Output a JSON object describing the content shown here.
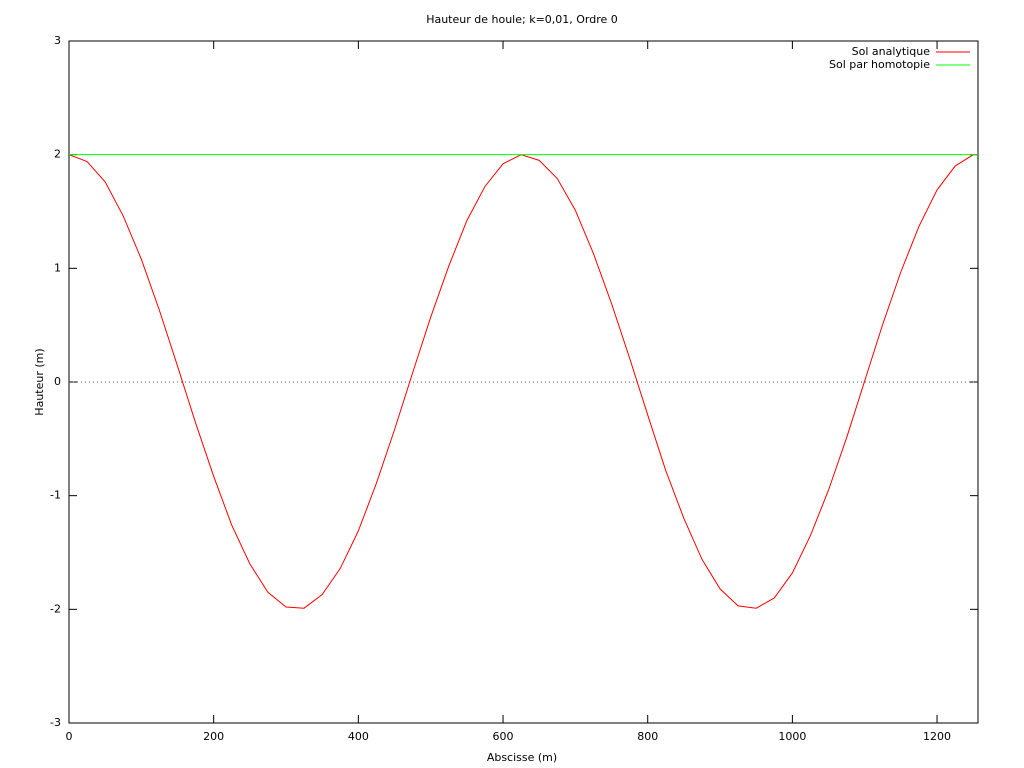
{
  "chart_data": {
    "type": "line",
    "title": "Hauteur de houle; k=0,01, Ordre 0",
    "x_label": "Abscisse (m)",
    "y_label": "Hauteur (m)",
    "xlim": [
      0,
      1256.6
    ],
    "ylim": [
      -3,
      3
    ],
    "xticks": [
      0,
      200,
      400,
      600,
      800,
      1000,
      1200
    ],
    "yticks": [
      -3,
      -2,
      -1,
      0,
      1,
      2,
      3
    ],
    "zeroaxis": true,
    "legend": "top-right",
    "series": [
      {
        "name": "Sol analytique",
        "color": "#ff0000",
        "x": [
          0,
          25,
          50,
          75,
          100,
          125,
          150,
          175,
          200,
          225,
          250,
          275,
          300,
          325,
          350,
          375,
          400,
          425,
          450,
          475,
          500,
          525,
          550,
          575,
          600,
          625,
          650,
          675,
          700,
          725,
          750,
          775,
          800,
          825,
          850,
          875,
          900,
          925,
          950,
          975,
          1000,
          1025,
          1050,
          1075,
          1100,
          1125,
          1150,
          1175,
          1200,
          1225,
          1250,
          1256.6
        ],
        "values": [
          2.0,
          1.94,
          1.76,
          1.46,
          1.08,
          0.63,
          0.14,
          -0.36,
          -0.83,
          -1.26,
          -1.6,
          -1.85,
          -1.98,
          -1.99,
          -1.87,
          -1.64,
          -1.31,
          -0.89,
          -0.42,
          0.08,
          0.57,
          1.02,
          1.42,
          1.72,
          1.92,
          2.0,
          1.95,
          1.79,
          1.51,
          1.13,
          0.69,
          0.21,
          -0.29,
          -0.78,
          -1.2,
          -1.56,
          -1.82,
          -1.97,
          -1.99,
          -1.9,
          -1.68,
          -1.35,
          -0.95,
          -0.49,
          0.01,
          0.51,
          0.97,
          1.37,
          1.69,
          1.9,
          2.0,
          2.0
        ]
      },
      {
        "name": "Sol par homotopie",
        "color": "#00ff00",
        "x": [
          0,
          1256.6
        ],
        "values": [
          2,
          2
        ]
      }
    ]
  }
}
